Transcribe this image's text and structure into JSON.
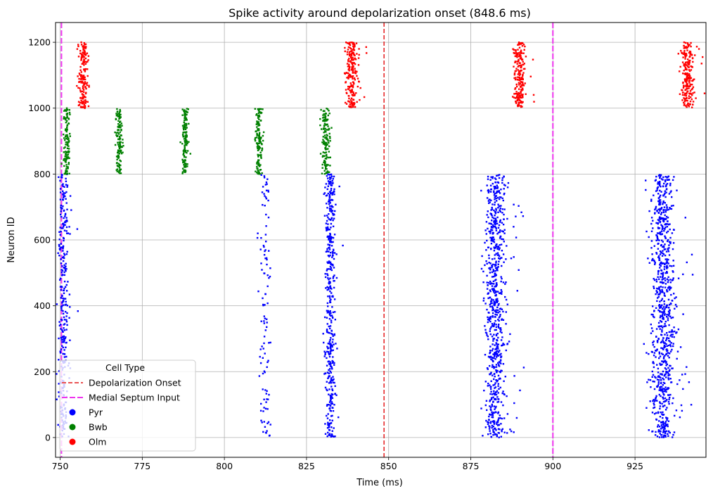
{
  "chart_data": {
    "type": "scatter",
    "title": "Spike activity around depolarization onset (848.6 ms)",
    "xlabel": "Time (ms)",
    "ylabel": "Neuron ID",
    "xlim": [
      748.6,
      946.6
    ],
    "ylim": [
      -60,
      1260
    ],
    "xticks": [
      750,
      775,
      800,
      825,
      850,
      875,
      900,
      925
    ],
    "yticks": [
      0,
      200,
      400,
      600,
      800,
      1000,
      1200
    ],
    "grid": true,
    "legend": {
      "title": "Cell Type",
      "placement": "lower-left",
      "entries": [
        {
          "label": "Depolarization Onset",
          "kind": "dashed-line",
          "color": "#e41a1c"
        },
        {
          "label": "Medial Septum Input",
          "kind": "dashed-line",
          "color": "#ee33ee"
        },
        {
          "label": "Pyr",
          "kind": "marker",
          "color": "#0000ff"
        },
        {
          "label": "Bwb",
          "kind": "marker",
          "color": "#008000"
        },
        {
          "label": "Olm",
          "kind": "marker",
          "color": "#ff0000"
        }
      ]
    },
    "vlines": [
      {
        "name": "Depolarization Onset",
        "x": 848.6,
        "color": "#e41a1c"
      },
      {
        "name": "Medial Septum Input",
        "x": 750.4,
        "color": "#ee33ee"
      },
      {
        "name": "Medial Septum Input",
        "x": 900,
        "color": "#ee33ee"
      }
    ],
    "series": [
      {
        "name": "Pyr",
        "color": "#0000ff",
        "neuron_range": [
          0,
          800
        ],
        "bursts": [
          {
            "center": 751.0,
            "spread": 0.8,
            "count": 300,
            "tail": 8
          },
          {
            "center": 812.5,
            "spread": 0.9,
            "count": 110,
            "tail": 0
          },
          {
            "center": 832.3,
            "spread": 0.7,
            "count": 420,
            "tail": 10
          },
          {
            "center": 882.5,
            "spread": 1.5,
            "count": 700,
            "tail": 45
          },
          {
            "center": 933.5,
            "spread": 1.7,
            "count": 780,
            "tail": 55
          }
        ]
      },
      {
        "name": "Bwb",
        "color": "#008000",
        "neuron_range": [
          800,
          1000
        ],
        "bursts": [
          {
            "center": 752.0,
            "spread": 0.5,
            "count": 120,
            "tail": 0
          },
          {
            "center": 768.0,
            "spread": 0.5,
            "count": 130,
            "tail": 0
          },
          {
            "center": 788.0,
            "spread": 0.5,
            "count": 140,
            "tail": 0
          },
          {
            "center": 810.5,
            "spread": 0.5,
            "count": 140,
            "tail": 0
          },
          {
            "center": 830.8,
            "spread": 0.7,
            "count": 140,
            "tail": 0
          }
        ]
      },
      {
        "name": "Olm",
        "color": "#ff0000",
        "neuron_range": [
          1000,
          1200
        ],
        "bursts": [
          {
            "center": 757.0,
            "spread": 0.7,
            "count": 170,
            "tail": 0
          },
          {
            "center": 838.8,
            "spread": 0.8,
            "count": 190,
            "tail": 16
          },
          {
            "center": 889.8,
            "spread": 0.8,
            "count": 200,
            "tail": 8
          },
          {
            "center": 941.0,
            "spread": 0.9,
            "count": 210,
            "tail": 10
          }
        ]
      }
    ]
  }
}
